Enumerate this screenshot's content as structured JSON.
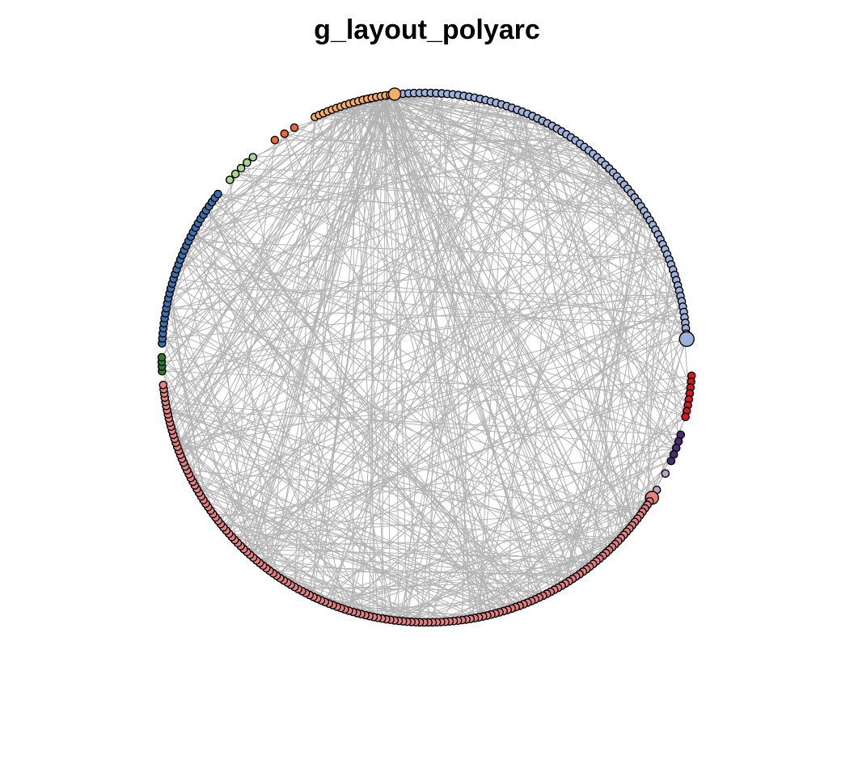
{
  "title": "g_layout_polyarc",
  "edge_color": "#b3b3b3",
  "node_stroke": "#000000",
  "chart_data": {
    "type": "network",
    "layout": "polyarc",
    "title": "g_layout_polyarc",
    "groups": [
      {
        "id": "light-blue",
        "color": "#9db3dd",
        "count": 86
      },
      {
        "id": "red",
        "color": "#d7191c",
        "count": 8
      },
      {
        "id": "purple",
        "color": "#4b2c77",
        "count": 5
      },
      {
        "id": "lavender",
        "color": "#b8a2cc",
        "count": 2
      },
      {
        "id": "salmon",
        "color": "#e78080",
        "count": 156
      },
      {
        "id": "dark-green",
        "color": "#2c7a2c",
        "count": 4
      },
      {
        "id": "steel-blue",
        "color": "#3a72b0",
        "count": 33
      },
      {
        "id": "light-green",
        "color": "#a6d98a",
        "count": 5
      },
      {
        "id": "orange",
        "color": "#f06a2a",
        "count": 3
      },
      {
        "id": "light-orange",
        "color": "#f6ad64",
        "count": 19
      }
    ]
  }
}
